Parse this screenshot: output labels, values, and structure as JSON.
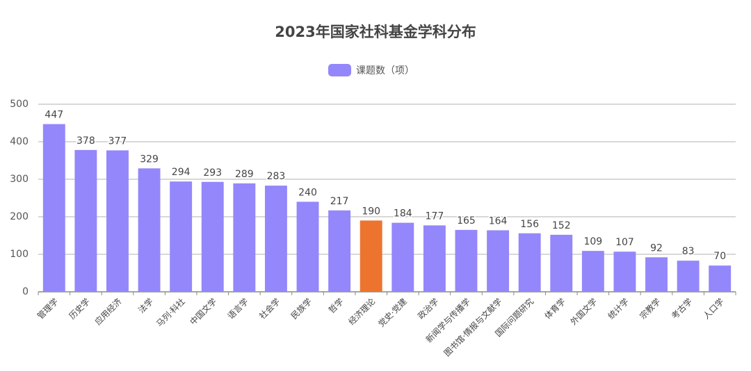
{
  "chart_data": {
    "type": "bar",
    "title": "2023年国家社科基金学科分布",
    "categories": [
      "管理学",
      "历史学",
      "应用经济",
      "法学",
      "马列·科社",
      "中国文学",
      "语言学",
      "社会学",
      "民族学",
      "哲学",
      "经济理论",
      "党史·党建",
      "政治学",
      "新闻学与传播学",
      "图书馆·情报与文献学",
      "国际问题研究",
      "体育学",
      "外国文学",
      "统计学",
      "宗教学",
      "考古学",
      "人口学"
    ],
    "series": [
      {
        "name": "课题数（项）",
        "color": "#9487fb",
        "values": [
          447,
          378,
          377,
          329,
          294,
          293,
          289,
          283,
          240,
          217,
          190,
          184,
          177,
          165,
          164,
          156,
          152,
          109,
          107,
          92,
          83,
          70
        ],
        "bar_colors": [
          "#9487fb",
          "#9487fb",
          "#9487fb",
          "#9487fb",
          "#9487fb",
          "#9487fb",
          "#9487fb",
          "#9487fb",
          "#9487fb",
          "#9487fb",
          "#ec742f",
          "#9487fb",
          "#9487fb",
          "#9487fb",
          "#9487fb",
          "#9487fb",
          "#9487fb",
          "#9487fb",
          "#9487fb",
          "#9487fb",
          "#9487fb",
          "#9487fb"
        ]
      }
    ],
    "ylim": [
      0,
      500
    ],
    "yticks": [
      0,
      100,
      200,
      300,
      400,
      500
    ],
    "grid": true,
    "legend": "top"
  }
}
